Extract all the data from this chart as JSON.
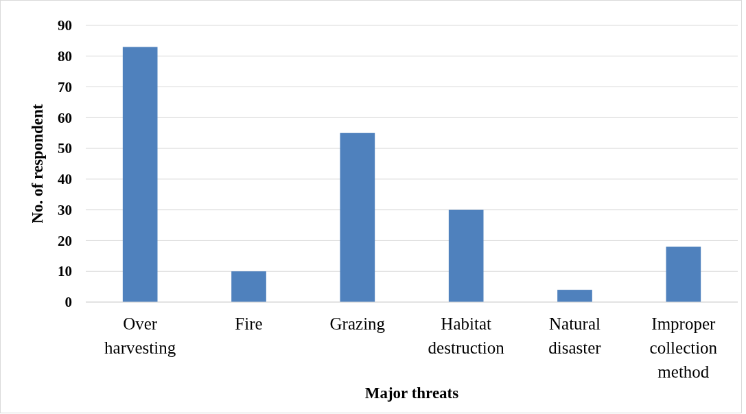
{
  "chart_data": {
    "type": "bar",
    "xlabel": "Major threats",
    "ylabel": "No. of respondent",
    "categories": [
      "Over harvesting",
      "Fire",
      "Grazing",
      "Habitat destruction",
      "Natural disaster",
      "Improper collection method"
    ],
    "values": [
      83,
      10,
      55,
      30,
      4,
      18
    ],
    "color": "#4f81bd",
    "ylim": [
      0,
      90
    ],
    "yticks": [
      0,
      10,
      20,
      30,
      40,
      50,
      60,
      70,
      80,
      90
    ],
    "grid": "y"
  }
}
